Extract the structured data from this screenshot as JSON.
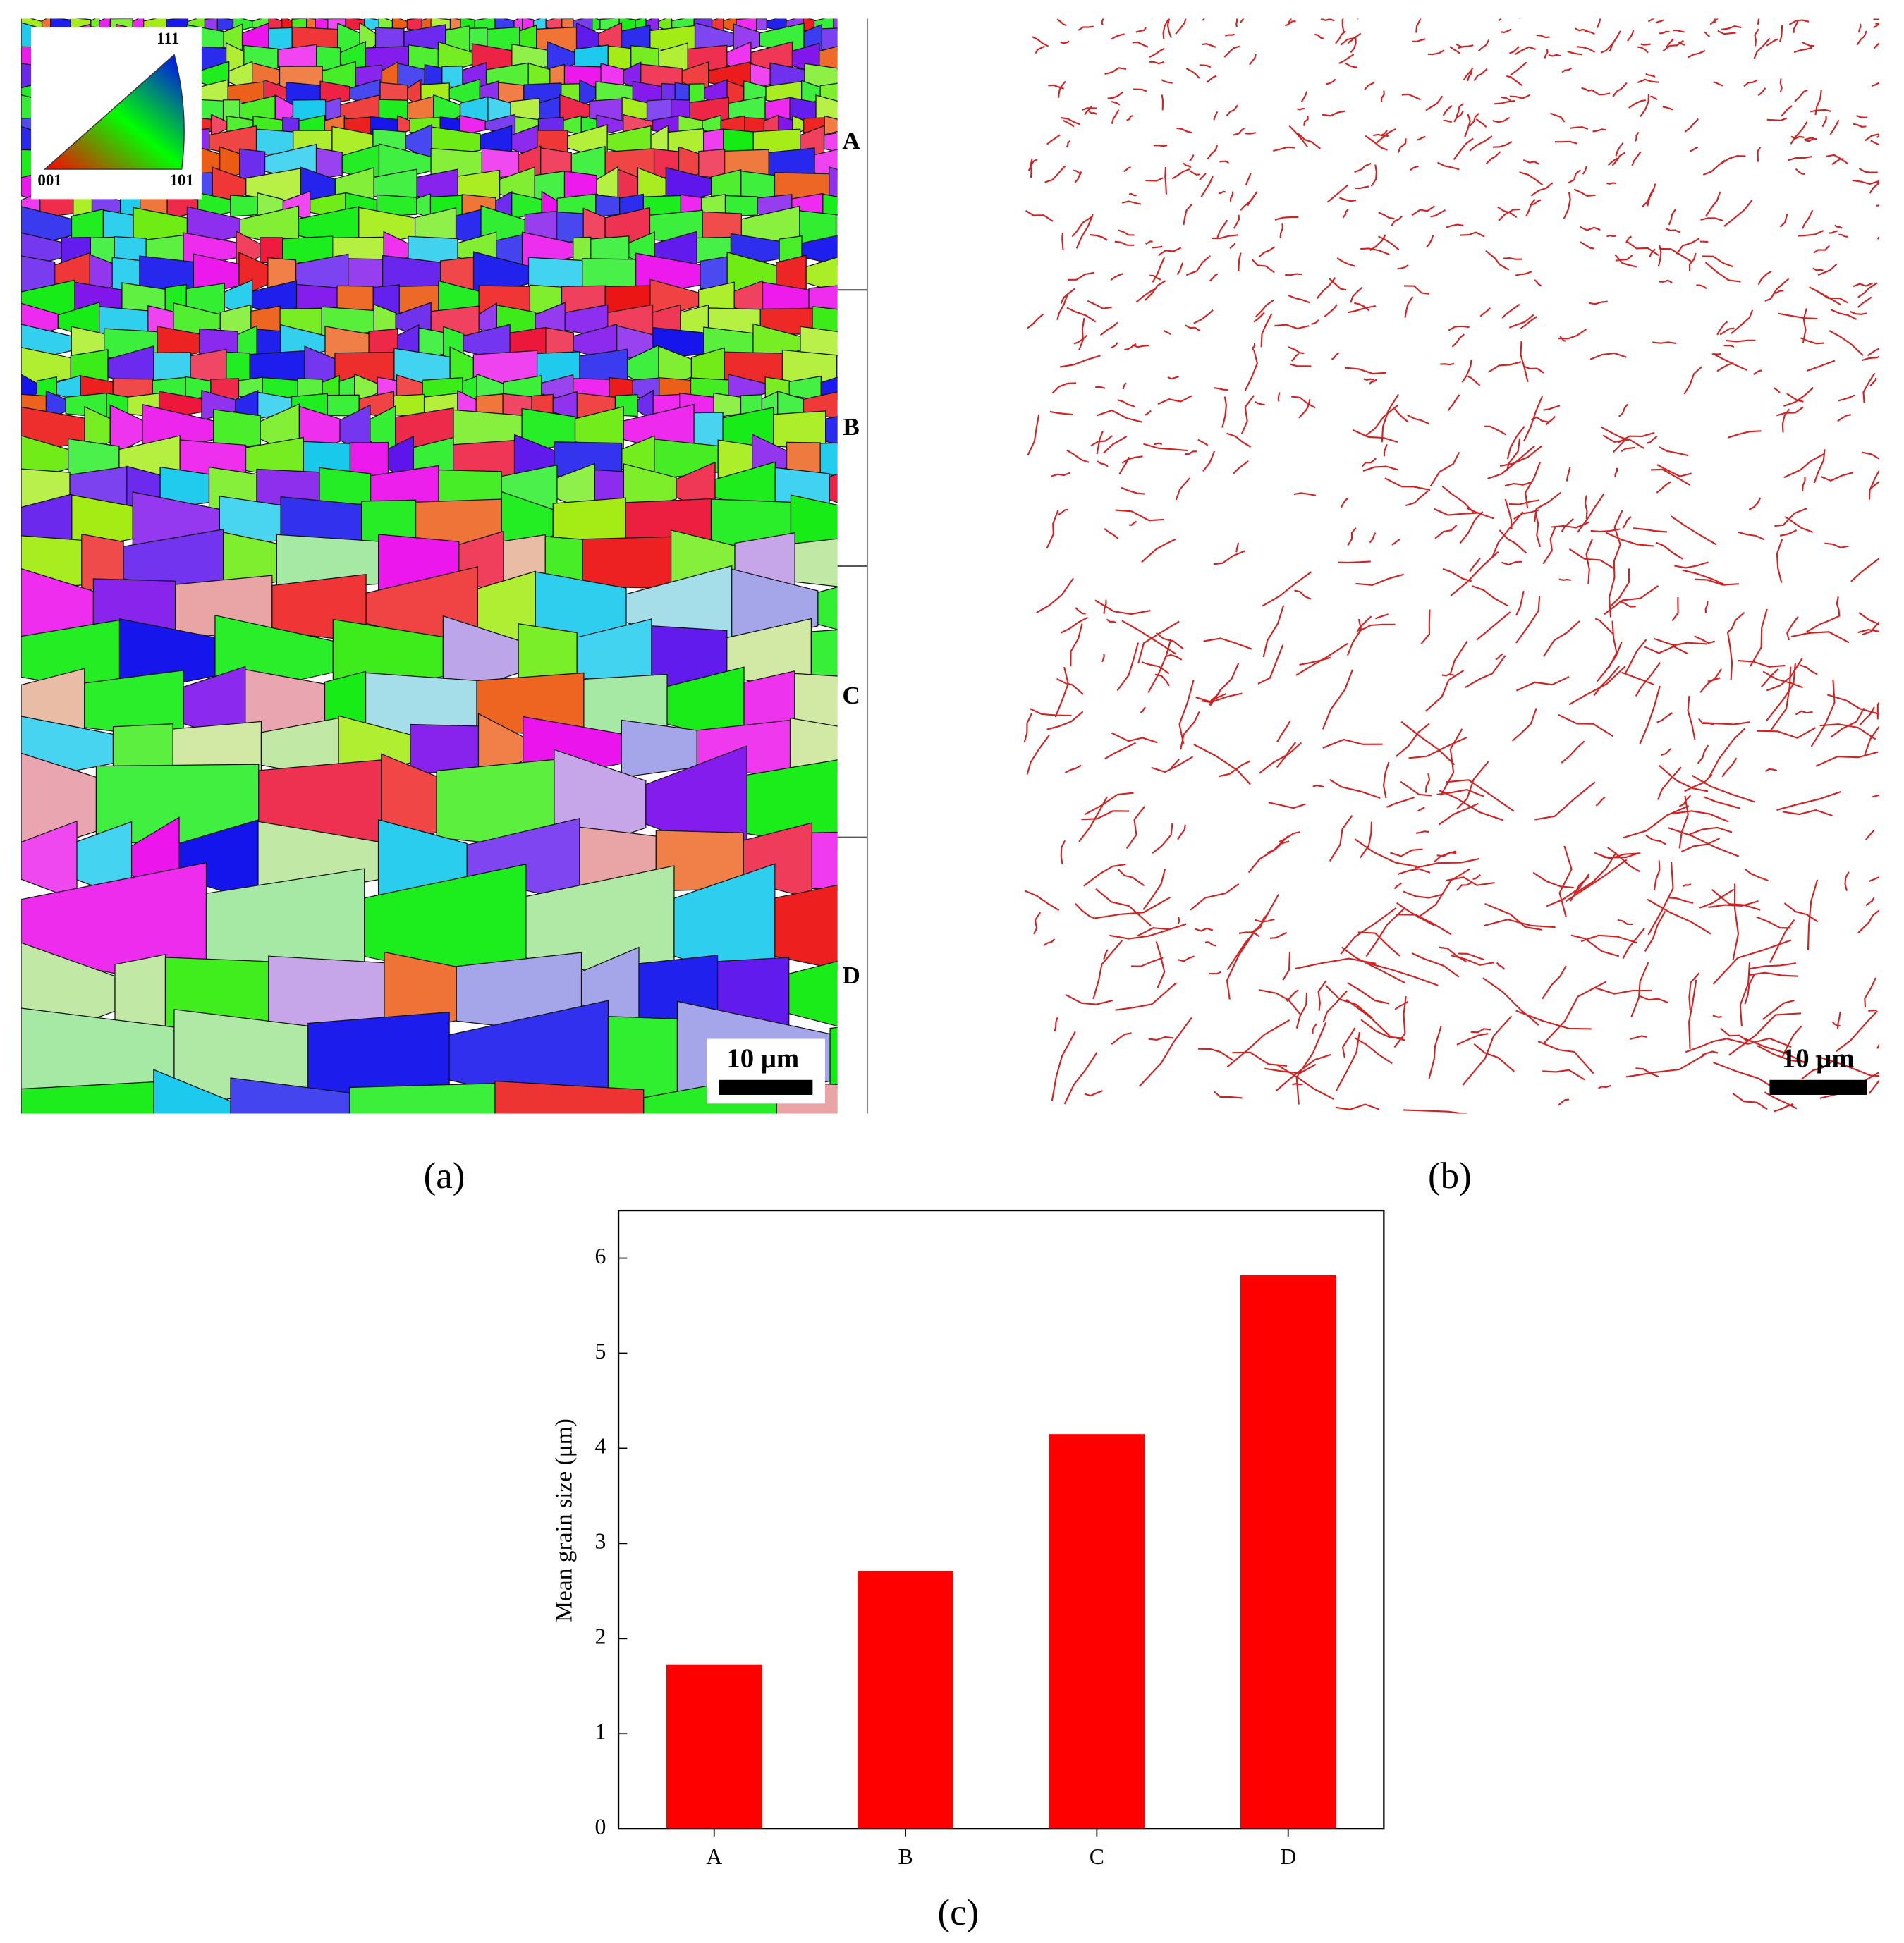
{
  "panels": {
    "a": {
      "label": "(a)",
      "regions": [
        "A",
        "B",
        "C",
        "D"
      ],
      "scale_bar": "10 μm",
      "legend": {
        "labels": [
          "111",
          "001",
          "101"
        ]
      }
    },
    "b": {
      "label": "(b)",
      "scale_bar": "10 μm"
    }
  },
  "chart_data": {
    "type": "bar",
    "panel_label": "(c)",
    "y_label": "Mean grain size (μm)",
    "categories": [
      "A",
      "B",
      "C",
      "D"
    ],
    "values": [
      1.73,
      2.71,
      4.15,
      5.82
    ],
    "color": "#ff0000",
    "ylim": [
      0,
      6.5
    ],
    "yticks": [
      0,
      1,
      2,
      3,
      4,
      5,
      6
    ]
  }
}
